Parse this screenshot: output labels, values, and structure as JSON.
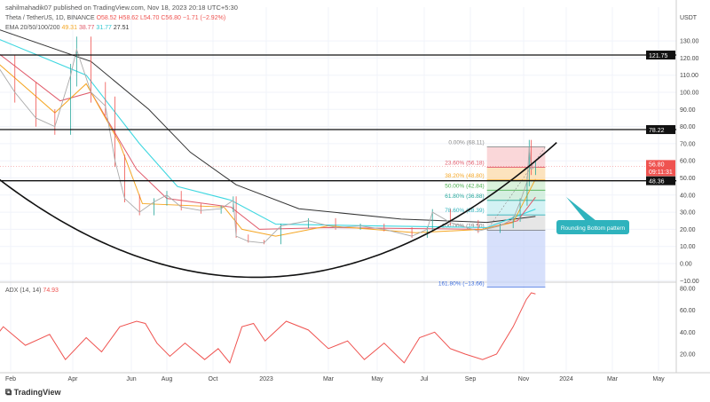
{
  "header": {
    "published": "sahilmahadik07 published on TradingView.com, Nov 18, 2023 20:18 UTC+5:30",
    "symbol": "Theta / TetherUS, 1D, BINANCE",
    "ohlc": "O58.52 H58.62 L54.70 C56.80 −1.71 (−2.92%)",
    "ema_label": "EMA 20/50/100/200",
    "ema_values": [
      "49.31",
      "38.77",
      "31.77",
      "27.51"
    ]
  },
  "colors": {
    "ema20": "#f5a623",
    "ema50": "#e05a6a",
    "ema100": "#3fd7e0",
    "ema200": "#333333",
    "price_up": "#26a69a",
    "price_down": "#ef5350",
    "adx": "#ef5350",
    "annotation": "#2fb3bd"
  },
  "footer": {
    "logo": "TradingView"
  },
  "chart_data": [
    {
      "type": "candlestick",
      "title": "Theta / TetherUS, 1D, BINANCE",
      "currency": "USDT",
      "ylim": [
        -12,
        140
      ],
      "y_ticks": [
        -10,
        0,
        10,
        20,
        30,
        40,
        50,
        60,
        70,
        80,
        90,
        100,
        110,
        120,
        130
      ],
      "x_ticks": [
        "Feb",
        "Apr",
        "Jun",
        "Aug",
        "Oct",
        "2023",
        "Mar",
        "May",
        "Jul",
        "Sep",
        "Nov",
        "2024",
        "Mar",
        "May"
      ],
      "price": [
        [
          "2022-01-05",
          128
        ],
        [
          "2022-01-20",
          115
        ],
        [
          "2022-02-05",
          100
        ],
        [
          "2022-02-25",
          85
        ],
        [
          "2022-03-15",
          80
        ],
        [
          "2022-03-30",
          110
        ],
        [
          "2022-04-05",
          125
        ],
        [
          "2022-04-20",
          100
        ],
        [
          "2022-05-05",
          92
        ],
        [
          "2022-05-15",
          60
        ],
        [
          "2022-05-25",
          38
        ],
        [
          "2022-06-15",
          30
        ],
        [
          "2022-07-10",
          36
        ],
        [
          "2022-08-01",
          40
        ],
        [
          "2022-08-20",
          33
        ],
        [
          "2022-09-15",
          31
        ],
        [
          "2022-10-15",
          32
        ],
        [
          "2022-11-05",
          37
        ],
        [
          "2022-11-10",
          16
        ],
        [
          "2022-12-01",
          13
        ],
        [
          "2022-12-28",
          12
        ],
        [
          "2023-01-15",
          22
        ],
        [
          "2023-02-10",
          25
        ],
        [
          "2023-03-10",
          21
        ],
        [
          "2023-04-10",
          22
        ],
        [
          "2023-05-10",
          20
        ],
        [
          "2023-06-15",
          16
        ],
        [
          "2023-07-05",
          20
        ],
        [
          "2023-07-12",
          30
        ],
        [
          "2023-08-05",
          24
        ],
        [
          "2023-09-10",
          19
        ],
        [
          "2023-10-05",
          22
        ],
        [
          "2023-10-20",
          26
        ],
        [
          "2023-10-28",
          36
        ],
        [
          "2023-11-06",
          48
        ],
        [
          "2023-11-09",
          68.11
        ],
        [
          "2023-11-12",
          55
        ],
        [
          "2023-11-18",
          56.8
        ]
      ],
      "ema": {
        "ema20": [
          [
            "2022-01-05",
            125
          ],
          [
            "2022-03-15",
            88
          ],
          [
            "2022-04-15",
            105
          ],
          [
            "2022-05-20",
            70
          ],
          [
            "2022-06-20",
            35
          ],
          [
            "2022-10-20",
            33
          ],
          [
            "2022-11-20",
            20
          ],
          [
            "2023-01-10",
            16
          ],
          [
            "2023-03-01",
            22
          ],
          [
            "2023-06-20",
            18
          ],
          [
            "2023-09-15",
            20
          ],
          [
            "2023-10-20",
            24
          ],
          [
            "2023-11-18",
            49.31
          ]
        ],
        "ema50": [
          [
            "2022-01-05",
            130
          ],
          [
            "2022-03-20",
            95
          ],
          [
            "2022-04-20",
            100
          ],
          [
            "2022-06-10",
            55
          ],
          [
            "2022-08-01",
            38
          ],
          [
            "2022-11-01",
            33
          ],
          [
            "2022-12-20",
            20
          ],
          [
            "2023-03-01",
            21
          ],
          [
            "2023-09-15",
            20
          ],
          [
            "2023-10-25",
            25
          ],
          [
            "2023-11-18",
            38.77
          ]
        ],
        "ema100": [
          [
            "2022-01-05",
            135
          ],
          [
            "2022-04-15",
            110
          ],
          [
            "2022-06-15",
            70
          ],
          [
            "2022-08-15",
            45
          ],
          [
            "2022-11-01",
            37
          ],
          [
            "2023-01-10",
            23
          ],
          [
            "2023-05-01",
            22
          ],
          [
            "2023-09-20",
            21
          ],
          [
            "2023-11-18",
            31.77
          ]
        ],
        "ema200": [
          [
            "2022-01-05",
            140
          ],
          [
            "2022-04-20",
            118
          ],
          [
            "2022-07-01",
            90
          ],
          [
            "2022-09-01",
            65
          ],
          [
            "2022-11-10",
            46
          ],
          [
            "2023-02-01",
            32
          ],
          [
            "2023-06-01",
            26
          ],
          [
            "2023-09-20",
            24
          ],
          [
            "2023-11-18",
            27.51
          ]
        ]
      },
      "horizontal_levels": [
        {
          "price": 121.75,
          "label": "121.75"
        },
        {
          "price": 78.22,
          "label": "78.22"
        },
        {
          "price": 48.36,
          "label": "48.36"
        }
      ],
      "current_price": {
        "label": "56.80",
        "countdown": "09:11:31",
        "value": 56.8
      },
      "fibonacci": {
        "start": "2023-09-20",
        "end": "2023-12-02",
        "levels": [
          {
            "ratio": "0.00%",
            "price": 68.11,
            "label": "0.00% (68.11)",
            "color": "#888888",
            "fill": "#f8c9cc"
          },
          {
            "ratio": "23.60%",
            "price": 56.18,
            "label": "23.60% (56.18)",
            "color": "#e05a6a",
            "fill": "#fbd9a8"
          },
          {
            "ratio": "38.20%",
            "price": 48.8,
            "label": "38.20% (48.80)",
            "color": "#f5a623",
            "fill": "#cfeccf"
          },
          {
            "ratio": "50.00%",
            "price": 42.84,
            "label": "50.00% (42.84)",
            "color": "#4caf50",
            "fill": "#c7e9d6"
          },
          {
            "ratio": "61.80%",
            "price": 36.88,
            "label": "61.80% (36.88)",
            "color": "#26a69a",
            "fill": "#c4eef0"
          },
          {
            "ratio": "78.60%",
            "price": 28.39,
            "label": "78.60% (28.39)",
            "color": "#2fb3bd",
            "fill": "#dddddd"
          },
          {
            "ratio": "100.00%",
            "price": 19.5,
            "label": "100.00% (19.50)",
            "color": "#777777",
            "fill": "#c9d6fa"
          },
          {
            "ratio": "161.80%",
            "price": -13.66,
            "label": "161.80% (−13.66)",
            "color": "#3d6ee0",
            "fill": null
          }
        ]
      },
      "pattern_curve": [
        [
          "2022-01-01",
          59
        ],
        [
          "2023-04-20",
          3
        ],
        [
          "2023-12-22",
          72
        ]
      ],
      "annotation": "Rounding Bottom pattern"
    },
    {
      "type": "line",
      "title": "ADX (14, 14)",
      "value": "74.93",
      "ylim": [
        10,
        82
      ],
      "y_ticks": [
        20,
        40,
        60,
        80
      ],
      "values": [
        [
          "2022-01-05",
          20
        ],
        [
          "2022-01-25",
          45
        ],
        [
          "2022-02-15",
          28
        ],
        [
          "2022-03-10",
          38
        ],
        [
          "2022-03-25",
          15
        ],
        [
          "2022-04-15",
          35
        ],
        [
          "2022-05-01",
          22
        ],
        [
          "2022-05-20",
          45
        ],
        [
          "2022-06-10",
          50
        ],
        [
          "2022-06-25",
          48
        ],
        [
          "2022-07-15",
          30
        ],
        [
          "2022-08-05",
          18
        ],
        [
          "2022-08-25",
          30
        ],
        [
          "2022-09-20",
          15
        ],
        [
          "2022-10-10",
          25
        ],
        [
          "2022-10-30",
          12
        ],
        [
          "2022-11-20",
          45
        ],
        [
          "2022-12-10",
          48
        ],
        [
          "2022-12-30",
          32
        ],
        [
          "2023-01-20",
          50
        ],
        [
          "2023-02-10",
          42
        ],
        [
          "2023-03-01",
          25
        ],
        [
          "2023-03-25",
          32
        ],
        [
          "2023-04-15",
          15
        ],
        [
          "2023-05-10",
          30
        ],
        [
          "2023-06-05",
          12
        ],
        [
          "2023-06-25",
          35
        ],
        [
          "2023-07-15",
          40
        ],
        [
          "2023-08-05",
          25
        ],
        [
          "2023-08-25",
          20
        ],
        [
          "2023-09-15",
          15
        ],
        [
          "2023-10-01",
          20
        ],
        [
          "2023-10-20",
          45
        ],
        [
          "2023-11-05",
          70
        ],
        [
          "2023-11-12",
          76
        ],
        [
          "2023-11-18",
          74.93
        ]
      ]
    }
  ]
}
